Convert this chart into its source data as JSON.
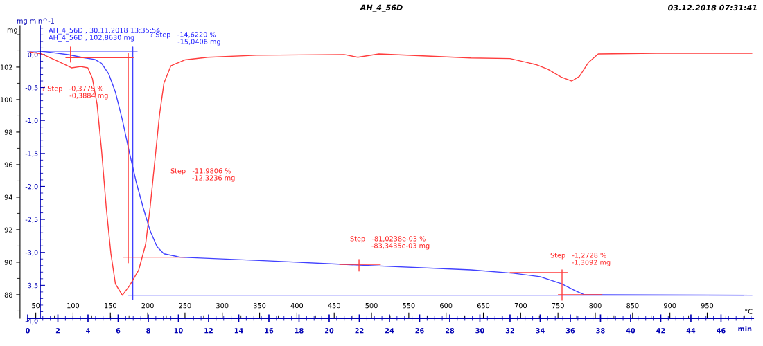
{
  "chart_data": {
    "type": "line",
    "title": "AH_4_56D",
    "subtitle": "03.12.2018 07:31:41",
    "xlabel": "min",
    "ylabel": "mg",
    "y2label": "mg min^-1",
    "x2label": "°C",
    "xlim": [
      0,
      48.14
    ],
    "xticks": [
      0,
      2,
      4,
      6,
      8,
      10,
      12,
      14,
      16,
      18,
      20,
      22,
      24,
      26,
      28,
      30,
      32,
      34,
      36,
      38,
      40,
      42,
      44,
      46
    ],
    "x2lim": [
      39.2,
      1011.8
    ],
    "x2ticks": [
      50,
      100,
      150,
      200,
      250,
      300,
      350,
      400,
      450,
      500,
      550,
      600,
      650,
      700,
      750,
      800,
      850,
      900,
      950
    ],
    "ylim": [
      86.55,
      104.55
    ],
    "yticks": [
      88,
      90,
      92,
      94,
      96,
      98,
      100,
      102
    ],
    "y2lim": [
      -4.0,
      0.44
    ],
    "y2ticks": [
      {
        "value": 0,
        "label": "0,0"
      },
      {
        "value": -0.5,
        "label": "-0,5"
      },
      {
        "value": -1.0,
        "label": "-1,0"
      },
      {
        "value": -1.5,
        "label": "-1,5"
      },
      {
        "value": -2.0,
        "label": "-2,0"
      },
      {
        "value": -2.5,
        "label": "-2,5"
      },
      {
        "value": -3.0,
        "label": "-3,0"
      },
      {
        "value": -3.5,
        "label": "-3,5"
      },
      {
        "value": -4.0,
        "label": "-4,0"
      }
    ],
    "series": [
      {
        "color": "#4040ff",
        "x": [
          0.69,
          1.23,
          2.76,
          3.68,
          4.45,
          4.9,
          5.37,
          5.82,
          6.28,
          6.74,
          7.2,
          7.66,
          8.12,
          8.58,
          9.04,
          10.11,
          15.63,
          21.75,
          29.4,
          32.2,
          34.0,
          35.4,
          36.3,
          36.9,
          37.8,
          48.05
        ],
        "values": [
          102.98,
          102.94,
          102.75,
          102.58,
          102.47,
          102.23,
          101.59,
          100.45,
          98.75,
          96.77,
          94.92,
          93.36,
          91.94,
          90.95,
          90.52,
          90.31,
          90.1,
          89.83,
          89.53,
          89.32,
          89.11,
          88.68,
          88.26,
          88.01,
          88.0,
          87.97
        ]
      },
      {
        "color": "#ff3c3c",
        "axis": "y2",
        "x": [
          0.15,
          0.92,
          1.99,
          2.91,
          3.52,
          3.99,
          4.29,
          4.6,
          4.9,
          5.21,
          5.52,
          5.82,
          6.28,
          6.74,
          7.36,
          7.82,
          8.12,
          8.43,
          8.74,
          9.04,
          9.5,
          10.42,
          11.95,
          15.17,
          21.0,
          21.9,
          23.3,
          29.4,
          32.0,
          33.7,
          34.5,
          35.4,
          36.1,
          36.6,
          37.2,
          37.85,
          41.7,
          48.05
        ],
        "values": [
          0.04,
          0.01,
          -0.1,
          -0.2,
          -0.18,
          -0.2,
          -0.36,
          -0.75,
          -1.45,
          -2.32,
          -3.02,
          -3.48,
          -3.65,
          -3.51,
          -3.27,
          -2.88,
          -2.32,
          -1.62,
          -0.92,
          -0.43,
          -0.17,
          -0.08,
          -0.04,
          -0.01,
          0.0,
          -0.04,
          0.01,
          -0.05,
          -0.06,
          -0.15,
          -0.22,
          -0.34,
          -0.4,
          -0.33,
          -0.12,
          0.01,
          0.02,
          0.02
        ]
      },
      {
        "color": "#4040ff",
        "x": [
          0,
          7.26
        ],
        "values": [
          102.98,
          102.98
        ]
      },
      {
        "color": "#4040ff",
        "x": [
          6.97,
          6.97
        ],
        "values": [
          103.23,
          87.7
        ]
      },
      {
        "color": "#4040ff",
        "x": [
          6.67,
          47.5
        ],
        "values": [
          87.97,
          87.97
        ]
      },
      {
        "color": "#ff3c3c",
        "x": [
          2.53,
          7.0
        ],
        "values": [
          102.58,
          102.58
        ]
      },
      {
        "color": "#ff3c3c",
        "x": [
          2.84,
          2.84
        ],
        "values": [
          103.23,
          102.3
        ]
      },
      {
        "color": "#ff3c3c",
        "x": [
          6.67,
          6.67
        ],
        "values": [
          102.86,
          89.96
        ]
      },
      {
        "color": "#ff3c3c",
        "x": [
          6.34,
          10.44
        ],
        "values": [
          90.31,
          90.31
        ]
      },
      {
        "color": "#ff3c3c",
        "x": [
          20.7,
          23.4
        ],
        "values": [
          89.87,
          89.87
        ]
      },
      {
        "color": "#ff3c3c",
        "x": [
          21.98,
          21.98
        ],
        "values": [
          90.17,
          89.45
        ]
      },
      {
        "color": "#ff3c3c",
        "x": [
          32.0,
          35.8
        ],
        "values": [
          89.36,
          89.36
        ]
      },
      {
        "color": "#ff3c3c",
        "x": [
          35.45,
          35.45
        ],
        "values": [
          89.53,
          87.66
        ]
      },
      {
        "color": "#ff3c3c",
        "x": [
          35.2,
          38.1
        ],
        "values": [
          88.0,
          88.0
        ]
      }
    ],
    "annotations": [
      "AH_4_56D , 30.11.2018 13:35:54\nAH_4_56D , 102,8630 mg",
      "? Step   -14,6220 %\n             -15,0406 mg",
      "? Step   -0,3775 %\n             -0,3884 mg",
      "Step   -11,9806 %\n          -12,3236 mg",
      "Step   -81,0238e-03 %\n          -83,3435e-03 mg",
      "Step   -1,2728 %\n          -1,3092 mg"
    ]
  }
}
